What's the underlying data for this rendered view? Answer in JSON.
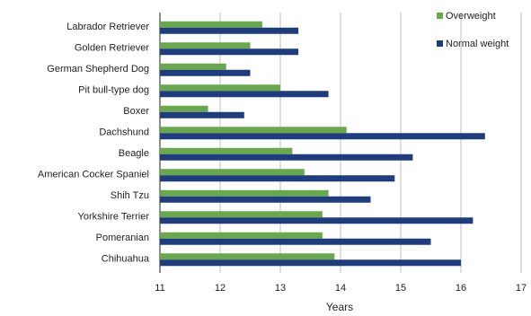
{
  "chart_data": {
    "type": "bar",
    "orientation": "horizontal",
    "title": "",
    "xlabel": "Years",
    "ylabel": "",
    "xlim": [
      11,
      17
    ],
    "x_ticks": [
      "11",
      "12",
      "13",
      "14",
      "15",
      "16",
      "17"
    ],
    "grid": true,
    "legend_position": "top-right",
    "categories": [
      "Labrador Retriever",
      "Golden Retriever",
      "German Shepherd Dog",
      "Pit bull-type dog",
      "Boxer",
      "Dachshund",
      "Beagle",
      "American Cocker Spaniel",
      "Shih Tzu",
      "Yorkshire Terrier",
      "Pomeranian",
      "Chihuahua"
    ],
    "series": [
      {
        "name": "Overweight",
        "color": "#6aa84f",
        "values": [
          12.7,
          12.5,
          12.1,
          13.0,
          11.8,
          14.1,
          13.2,
          13.4,
          13.8,
          13.7,
          13.7,
          13.9
        ]
      },
      {
        "name": "Normal weight",
        "color": "#1f3d7a",
        "values": [
          13.3,
          13.3,
          12.5,
          13.8,
          12.4,
          16.4,
          15.2,
          14.9,
          14.5,
          16.2,
          15.5,
          16.0
        ]
      }
    ]
  }
}
